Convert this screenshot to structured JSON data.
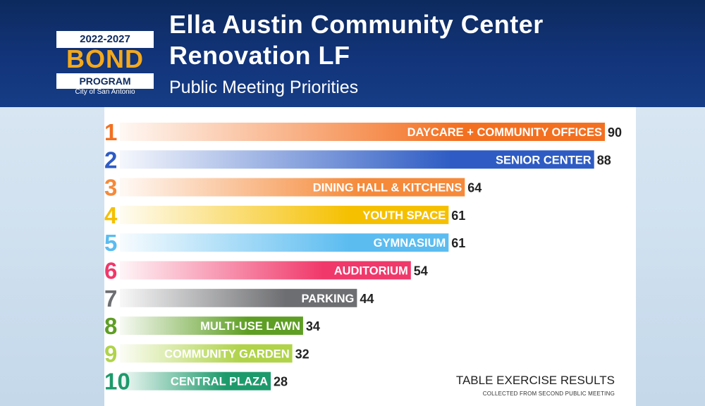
{
  "header": {
    "logo": {
      "years": "2022-2027",
      "bond": "BOND",
      "program": "PROGRAM",
      "city": "City of San Antonio"
    },
    "title_line1": "Ella Austin Community Center",
    "title_line2": "Renovation LF",
    "subtitle": "Public Meeting Priorities"
  },
  "footnote": {
    "title": "TABLE EXERCISE RESULTS",
    "subtitle": "COLLECTED FROM SECOND PUBLIC MEETING"
  },
  "chart_data": {
    "type": "bar",
    "orientation": "horizontal",
    "title": "Public Meeting Priorities",
    "ranks": [
      "1",
      "2",
      "3",
      "4",
      "5",
      "6",
      "7",
      "8",
      "9",
      "10"
    ],
    "categories": [
      "DAYCARE + COMMUNITY OFFICES",
      "SENIOR CENTER",
      "DINING HALL & KITCHENS",
      "YOUTH SPACE",
      "GYMNASIUM",
      "AUDITORIUM",
      "PARKING",
      "MULTI-USE LAWN",
      "COMMUNITY GARDEN",
      "CENTRAL PLAZA"
    ],
    "values": [
      90,
      88,
      64,
      61,
      61,
      54,
      44,
      34,
      32,
      28
    ],
    "colors": [
      "#f37021",
      "#2e5cc4",
      "#f58a3a",
      "#f5c000",
      "#5bbcf0",
      "#f0386a",
      "#6d6e71",
      "#5e9e24",
      "#b0d34a",
      "#1d9a6c"
    ],
    "grid": false
  }
}
